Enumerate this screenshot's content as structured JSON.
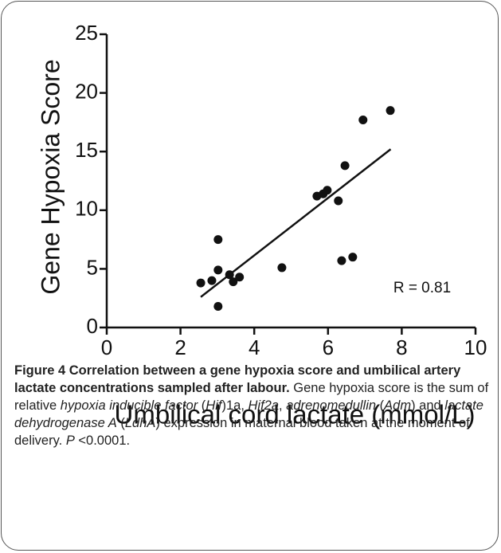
{
  "chart_data": {
    "type": "scatter",
    "x_label": "Umbilical cord lactate (mmol/L)",
    "y_label": "Gene Hypoxia Score",
    "annotation": "R = 0.81",
    "x": [
      2.55,
      2.85,
      3.02,
      3.02,
      3.02,
      3.33,
      3.43,
      3.6,
      4.75,
      5.7,
      5.87,
      5.98,
      6.28,
      6.37,
      6.46,
      6.67,
      6.95,
      7.69
    ],
    "values": [
      3.8,
      4.0,
      7.5,
      4.9,
      1.8,
      4.5,
      3.9,
      4.3,
      5.1,
      11.2,
      11.4,
      11.7,
      10.8,
      5.7,
      13.8,
      6.0,
      17.7,
      18.5
    ],
    "fit": {
      "x": [
        2.55,
        7.7
      ],
      "y": [
        2.6,
        15.2
      ]
    },
    "color": "#111111",
    "xlim": [
      0,
      10
    ],
    "xticks": [
      0,
      2,
      4,
      6,
      8,
      10
    ],
    "ylim": [
      0,
      25
    ],
    "yticks": [
      0,
      5,
      10,
      15,
      20,
      25
    ]
  },
  "caption": {
    "title": "Figure 4 Correlation between a gene hypoxia score and umbilical artery lactate concentrations sampled after labour.",
    "body": [
      "Gene hypoxia score is the sum of relative ",
      "hypoxia inducible factor",
      " (",
      "Hif",
      ")1a, ",
      "Hif2a",
      ", ",
      "adrenomedullin",
      " (",
      "Adm",
      ") and ",
      "lactate dehydrogenase A",
      " (",
      "LdhA",
      ") expression in maternal blood taken at the moment of delivery. ",
      "P",
      " <0.0001."
    ]
  }
}
